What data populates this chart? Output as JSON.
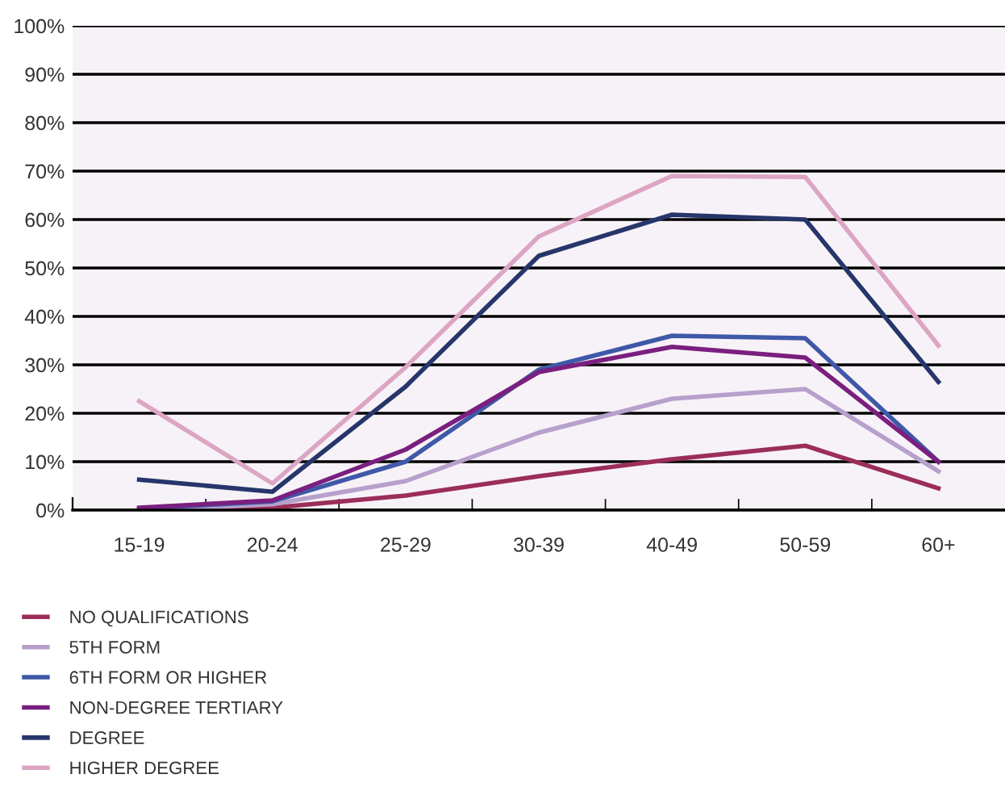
{
  "chart_data": {
    "type": "line",
    "categories": [
      "15-19",
      "20-24",
      "25-29",
      "30-39",
      "40-49",
      "50-59",
      "60+"
    ],
    "ylim": [
      0,
      100
    ],
    "yticks": [
      {
        "value": 0,
        "label": "0%"
      },
      {
        "value": 10,
        "label": "10%"
      },
      {
        "value": 20,
        "label": "20%"
      },
      {
        "value": 30,
        "label": "30%"
      },
      {
        "value": 40,
        "label": "40%"
      },
      {
        "value": 50,
        "label": "50%"
      },
      {
        "value": 60,
        "label": "60%"
      },
      {
        "value": 70,
        "label": "70%"
      },
      {
        "value": 80,
        "label": "80%"
      },
      {
        "value": 90,
        "label": "90%"
      },
      {
        "value": 100,
        "label": "100%"
      }
    ],
    "grid": "y",
    "legend": "bottom",
    "marker": "none",
    "line_style": "solid",
    "series": [
      {
        "name": "NO QUALIFICATIONS",
        "color": "#9b2d5a",
        "values": [
          0,
          0.5,
          3,
          7,
          10.5,
          13.3,
          4.5
        ]
      },
      {
        "name": "5TH FORM",
        "color": "#b7a0cc",
        "values": [
          0,
          1.2,
          6,
          16,
          23,
          25,
          8
        ]
      },
      {
        "name": "6TH FORM OR HIGHER",
        "color": "#3f58a8",
        "values": [
          0.3,
          1.8,
          10,
          29,
          36,
          35.5,
          10
        ]
      },
      {
        "name": "NON-DEGREE TERTIARY",
        "color": "#7a1f7f",
        "values": [
          0.5,
          2,
          12.5,
          28.5,
          33.7,
          31.5,
          10
        ]
      },
      {
        "name": "DEGREE",
        "color": "#26366b",
        "values": [
          6.3,
          3.8,
          25.5,
          52.5,
          61,
          60,
          26.5
        ]
      },
      {
        "name": "HIGHER DEGREE",
        "color": "#dca5c3",
        "values": [
          22.5,
          5.5,
          29.5,
          56.5,
          69,
          68.8,
          34
        ]
      }
    ]
  }
}
